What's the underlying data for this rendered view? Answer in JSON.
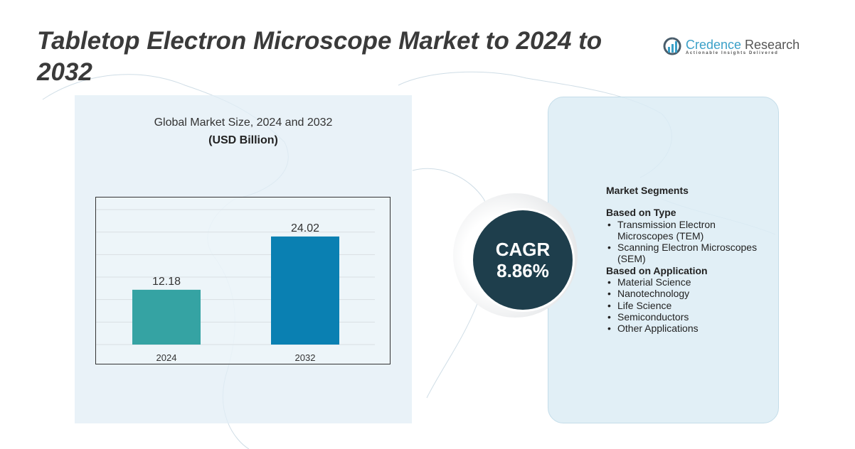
{
  "title": "Tabletop Electron Microscope Market to 2024 to 2032",
  "logo": {
    "name_part1": "Credence",
    "name_part2": " Research",
    "tagline": "Actionable Insights Delivered"
  },
  "chart_data": {
    "type": "bar",
    "title": "Global Market Size, 2024 and 2032",
    "subtitle": "(USD Billion)",
    "categories": [
      "2024",
      "2032"
    ],
    "values": [
      12.18,
      24.02
    ],
    "data_labels": [
      "12.18",
      "24.02"
    ],
    "colors": [
      "#35a3a3",
      "#0a80b2"
    ],
    "ylim": [
      0,
      30
    ],
    "grid": true
  },
  "cagr": {
    "label": "CAGR",
    "value": "8.86%"
  },
  "segments": {
    "heading": "Market Segments",
    "type_heading": "Based on Type",
    "types": [
      "Transmission Electron Microscopes (TEM)",
      "Scanning Electron Microscopes (SEM)"
    ],
    "app_heading": "Based on Application",
    "applications": [
      "Material Science",
      "Nanotechnology",
      "Life Science",
      "Semiconductors",
      "Other Applications"
    ]
  }
}
